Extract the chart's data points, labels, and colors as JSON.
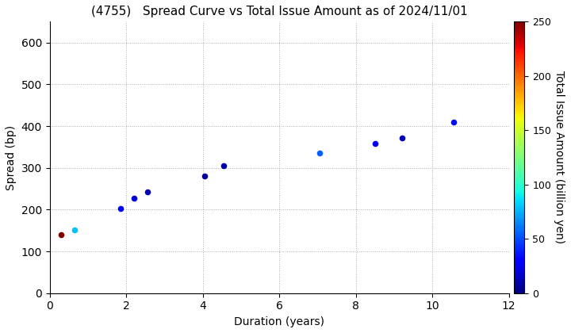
{
  "title": "(4755)   Spread Curve vs Total Issue Amount as of 2024/11/01",
  "xlabel": "Duration (years)",
  "ylabel": "Spread (bp)",
  "colorbar_label": "Total Issue Amount (billion yen)",
  "xlim": [
    0,
    12
  ],
  "ylim": [
    0,
    650
  ],
  "colorbar_min": 0,
  "colorbar_max": 250,
  "points": [
    {
      "duration": 0.3,
      "spread": 140,
      "amount": 250
    },
    {
      "duration": 0.65,
      "spread": 152,
      "amount": 80
    },
    {
      "duration": 1.85,
      "spread": 202,
      "amount": 30
    },
    {
      "duration": 2.2,
      "spread": 228,
      "amount": 20
    },
    {
      "duration": 2.55,
      "spread": 243,
      "amount": 13
    },
    {
      "duration": 4.05,
      "spread": 280,
      "amount": 8
    },
    {
      "duration": 4.55,
      "spread": 305,
      "amount": 10
    },
    {
      "duration": 7.05,
      "spread": 335,
      "amount": 55
    },
    {
      "duration": 8.5,
      "spread": 358,
      "amount": 25
    },
    {
      "duration": 9.2,
      "spread": 372,
      "amount": 12
    },
    {
      "duration": 10.55,
      "spread": 410,
      "amount": 35
    }
  ],
  "background_color": "#ffffff",
  "grid_color": "#999999",
  "title_fontsize": 11,
  "axis_fontsize": 10,
  "marker_size": 30
}
